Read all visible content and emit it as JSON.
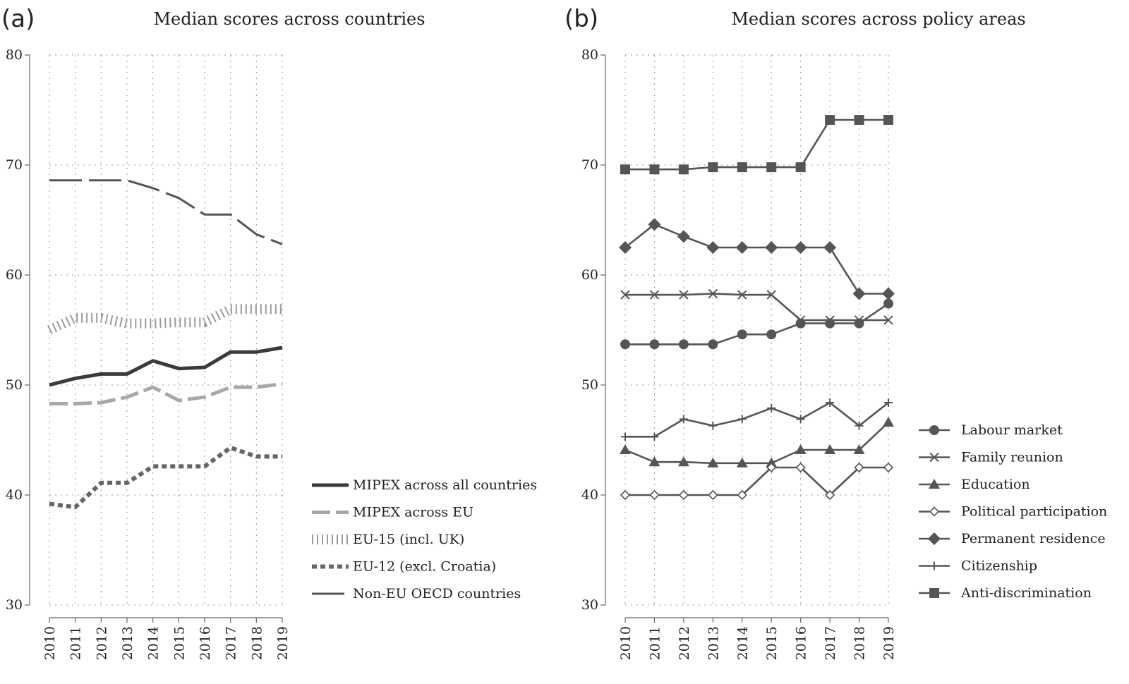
{
  "chart_data": [
    {
      "type": "line",
      "panel_label": "(a)",
      "title": "Median scores across countries",
      "categories": [
        "2010",
        "2011",
        "2012",
        "2013",
        "2014",
        "2015",
        "2016",
        "2017",
        "2018",
        "2019"
      ],
      "y_ticks": [
        30,
        40,
        50,
        60,
        70,
        80
      ],
      "ylim": [
        30,
        80
      ],
      "grid": true,
      "legend_position": "right",
      "series": [
        {
          "name": "MIPEX across all countries",
          "style": "solid-thick",
          "color": "#3a3a3a",
          "values": [
            50.0,
            50.6,
            51.0,
            51.0,
            52.2,
            51.5,
            51.6,
            53.0,
            53.0,
            53.4
          ]
        },
        {
          "name": "MIPEX across EU",
          "style": "dash-light",
          "color": "#a8a8a8",
          "values": [
            48.3,
            48.3,
            48.4,
            48.9,
            49.8,
            48.6,
            48.9,
            49.8,
            49.8,
            50.1
          ]
        },
        {
          "name": "EU-15 (incl. UK)",
          "style": "hatched",
          "color": "#9a9a9a",
          "values": [
            55.0,
            56.1,
            56.1,
            55.6,
            55.6,
            55.7,
            55.7,
            56.9,
            56.9,
            56.9
          ]
        },
        {
          "name": "EU-12 (excl. Croatia)",
          "style": "short-dash",
          "color": "#666666",
          "values": [
            39.2,
            38.9,
            41.1,
            41.1,
            42.6,
            42.6,
            42.6,
            44.3,
            43.5,
            43.5
          ]
        },
        {
          "name": "Non-EU OECD countries",
          "style": "long-dash",
          "color": "#555555",
          "values": [
            68.6,
            68.6,
            68.6,
            68.6,
            67.9,
            67.0,
            65.5,
            65.5,
            63.7,
            62.8
          ]
        }
      ]
    },
    {
      "type": "line",
      "panel_label": "(b)",
      "title": "Median scores across policy areas",
      "categories": [
        "2010",
        "2011",
        "2012",
        "2013",
        "2014",
        "2015",
        "2016",
        "2017",
        "2018",
        "2019"
      ],
      "y_ticks": [
        30,
        40,
        50,
        60,
        70,
        80
      ],
      "ylim": [
        30,
        80
      ],
      "grid": true,
      "legend_position": "bottom-right",
      "series": [
        {
          "name": "Labour market",
          "marker": "circle",
          "color": "#555555",
          "values": [
            53.7,
            53.7,
            53.7,
            53.7,
            54.6,
            54.6,
            55.6,
            55.6,
            55.6,
            57.4
          ]
        },
        {
          "name": "Family reunion",
          "marker": "x",
          "color": "#555555",
          "values": [
            58.2,
            58.2,
            58.2,
            58.3,
            58.2,
            58.2,
            55.9,
            55.9,
            55.9,
            55.9
          ]
        },
        {
          "name": "Education",
          "marker": "triangle",
          "color": "#555555",
          "values": [
            44.1,
            43.0,
            43.0,
            42.9,
            42.9,
            42.9,
            44.1,
            44.1,
            44.1,
            46.6
          ]
        },
        {
          "name": "Political participation",
          "marker": "hollow-diamond",
          "color": "#555555",
          "values": [
            40.0,
            40.0,
            40.0,
            40.0,
            40.0,
            42.5,
            42.5,
            40.0,
            42.5,
            42.5
          ]
        },
        {
          "name": "Permanent residence",
          "marker": "diamond",
          "color": "#555555",
          "values": [
            62.5,
            64.6,
            63.5,
            62.5,
            62.5,
            62.5,
            62.5,
            62.5,
            58.3,
            58.3
          ]
        },
        {
          "name": "Citizenship",
          "marker": "plus",
          "color": "#555555",
          "values": [
            45.3,
            45.3,
            46.9,
            46.3,
            46.9,
            47.9,
            46.9,
            48.4,
            46.3,
            48.4
          ]
        },
        {
          "name": "Anti-discrimination",
          "marker": "square",
          "color": "#555555",
          "values": [
            69.6,
            69.6,
            69.6,
            69.8,
            69.8,
            69.8,
            69.8,
            74.1,
            74.1,
            74.1
          ]
        }
      ]
    }
  ]
}
